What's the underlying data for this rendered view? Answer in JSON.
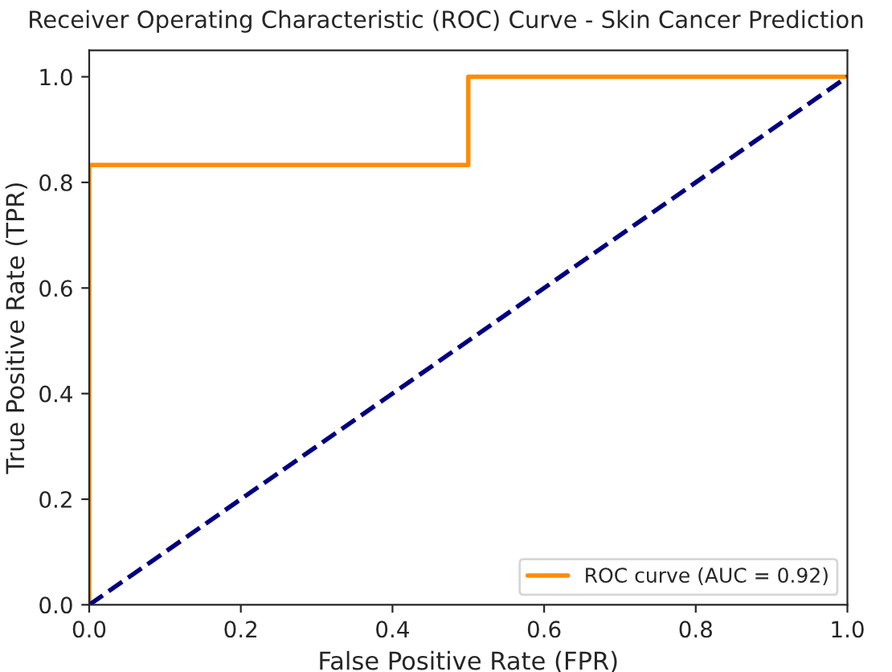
{
  "chart_data": {
    "type": "line",
    "title": "Receiver Operating Characteristic (ROC) Curve - Skin Cancer Prediction",
    "xlabel": "False Positive Rate (FPR)",
    "ylabel": "True Positive Rate (TPR)",
    "series": [
      {
        "name": "ROC curve (AUC = 0.92)",
        "color": "#ff8c00",
        "x": [
          0,
          0,
          0.5,
          0.5,
          1
        ],
        "values": [
          0,
          0.833,
          0.833,
          1,
          1
        ],
        "line_style": "solid"
      },
      {
        "color": "#000080",
        "x": [
          0,
          1
        ],
        "values": [
          0,
          1
        ],
        "line_style": "dashed"
      }
    ],
    "xlim": [
      0,
      1
    ],
    "ylim": [
      0,
      1.05
    ],
    "xticks": [
      {
        "value": 0,
        "label": "0.0"
      },
      0.2,
      0.4,
      0.6,
      0.8,
      {
        "value": 1,
        "label": "1.0"
      }
    ],
    "yticks": [
      {
        "value": 0,
        "label": "0.0"
      },
      0.2,
      0.4,
      0.6,
      0.8,
      {
        "value": 1,
        "label": "1.0"
      }
    ],
    "legend": "lower right",
    "grid": false,
    "marker": "none"
  }
}
